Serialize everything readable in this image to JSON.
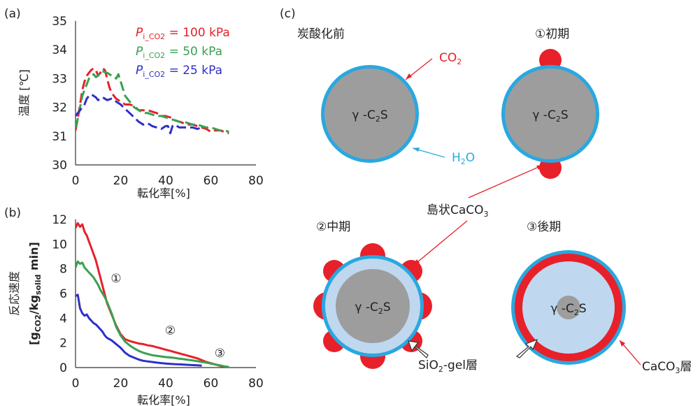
{
  "panels": {
    "a": "(a)",
    "b": "(b)",
    "c": "(c)"
  },
  "colors": {
    "red": "#e8202a",
    "green": "#3aa050",
    "blue": "#2f2fc8",
    "water": "#29a8e0",
    "gel": "#bfd8ef",
    "core": "#9d9d9d"
  },
  "chart_data": [
    {
      "type": "line",
      "panel": "(a)",
      "xlabel": "転化率[%]",
      "ylabel": "温度 [℃]",
      "xlim": [
        0,
        80
      ],
      "ylim": [
        30,
        35
      ],
      "xticks": [
        "0",
        "20",
        "40",
        "60",
        "80"
      ],
      "yticks": [
        "30",
        "31",
        "32",
        "33",
        "34",
        "35"
      ],
      "legend": [
        {
          "name_prefix": "P",
          "name_sub": "i_CO2",
          "value": " = 100 kPa",
          "color": "#e8202a"
        },
        {
          "name_prefix": "P",
          "name_sub": "i_CO2",
          "value": " = 50 kPa",
          "color": "#3aa050"
        },
        {
          "name_prefix": "P",
          "name_sub": "i_CO2",
          "value": " = 25 kPa",
          "color": "#2f2fc8"
        }
      ],
      "series": [
        {
          "color": "#e8202a",
          "points": [
            [
              0,
              31.2
            ],
            [
              1,
              31.6
            ],
            [
              2,
              32.1
            ],
            [
              3,
              32.6
            ],
            [
              4,
              32.9
            ],
            [
              5,
              33.1
            ],
            [
              6,
              33.2
            ],
            [
              7,
              33.3
            ],
            [
              8,
              33.35
            ],
            [
              9,
              33.3
            ],
            [
              10,
              33.1
            ],
            [
              11,
              33.2
            ],
            [
              12,
              33.35
            ],
            [
              13,
              33.3
            ],
            [
              14,
              33.0
            ],
            [
              15,
              32.7
            ],
            [
              16,
              32.5
            ],
            [
              18,
              32.3
            ],
            [
              20,
              32.2
            ],
            [
              22,
              32.1
            ],
            [
              24,
              32.1
            ],
            [
              26,
              32.05
            ],
            [
              28,
              31.9
            ],
            [
              30,
              31.9
            ],
            [
              32,
              31.9
            ],
            [
              34,
              31.85
            ],
            [
              36,
              31.8
            ],
            [
              38,
              31.7
            ],
            [
              40,
              31.7
            ],
            [
              42,
              31.65
            ],
            [
              44,
              31.55
            ],
            [
              46,
              31.5
            ],
            [
              48,
              31.45
            ],
            [
              50,
              31.4
            ],
            [
              52,
              31.4
            ],
            [
              54,
              31.35
            ],
            [
              56,
              31.3
            ],
            [
              58,
              31.25
            ],
            [
              60,
              31.15
            ],
            [
              62,
              31.2
            ],
            [
              64,
              31.2
            ],
            [
              66,
              31.15
            ],
            [
              68,
              31.1
            ]
          ]
        },
        {
          "color": "#3aa050",
          "points": [
            [
              0,
              31.3
            ],
            [
              1,
              31.6
            ],
            [
              2,
              32.0
            ],
            [
              3,
              32.4
            ],
            [
              4,
              32.6
            ],
            [
              5,
              32.8
            ],
            [
              6,
              33.0
            ],
            [
              7,
              33.1
            ],
            [
              8,
              33.15
            ],
            [
              9,
              33.05
            ],
            [
              10,
              33.1
            ],
            [
              11,
              33.2
            ],
            [
              12,
              33.25
            ],
            [
              14,
              33.2
            ],
            [
              16,
              33.1
            ],
            [
              18,
              33.0
            ],
            [
              19,
              33.15
            ],
            [
              20,
              32.9
            ],
            [
              22,
              32.4
            ],
            [
              24,
              32.2
            ],
            [
              26,
              32.0
            ],
            [
              28,
              31.9
            ],
            [
              30,
              31.8
            ],
            [
              32,
              31.8
            ],
            [
              34,
              31.75
            ],
            [
              36,
              31.7
            ],
            [
              38,
              31.7
            ],
            [
              40,
              31.65
            ],
            [
              42,
              31.6
            ],
            [
              44,
              31.55
            ],
            [
              46,
              31.5
            ],
            [
              48,
              31.5
            ],
            [
              50,
              31.45
            ],
            [
              52,
              31.4
            ],
            [
              54,
              31.4
            ],
            [
              56,
              31.35
            ],
            [
              58,
              31.3
            ],
            [
              60,
              31.3
            ],
            [
              62,
              31.25
            ],
            [
              64,
              31.2
            ],
            [
              66,
              31.2
            ],
            [
              68,
              31.15
            ]
          ]
        },
        {
          "color": "#2f2fc8",
          "points": [
            [
              0,
              31.7
            ],
            [
              1,
              31.8
            ],
            [
              2,
              31.9
            ],
            [
              3,
              32.0
            ],
            [
              4,
              32.1
            ],
            [
              5,
              32.3
            ],
            [
              6,
              32.4
            ],
            [
              7,
              32.45
            ],
            [
              8,
              32.4
            ],
            [
              9,
              32.35
            ],
            [
              10,
              32.25
            ],
            [
              11,
              32.3
            ],
            [
              12,
              32.35
            ],
            [
              13,
              32.3
            ],
            [
              14,
              32.25
            ],
            [
              16,
              32.3
            ],
            [
              18,
              32.2
            ],
            [
              20,
              32.1
            ],
            [
              22,
              31.95
            ],
            [
              24,
              31.8
            ],
            [
              26,
              31.65
            ],
            [
              28,
              31.5
            ],
            [
              30,
              31.4
            ],
            [
              32,
              31.45
            ],
            [
              34,
              31.35
            ],
            [
              36,
              31.3
            ],
            [
              38,
              31.25
            ],
            [
              40,
              31.35
            ],
            [
              41,
              31.35
            ],
            [
              42,
              31.1
            ],
            [
              43,
              31.35
            ],
            [
              44,
              31.4
            ],
            [
              46,
              31.3
            ],
            [
              48,
              31.3
            ],
            [
              50,
              31.3
            ],
            [
              52,
              31.3
            ],
            [
              54,
              31.25
            ],
            [
              56,
              31.3
            ]
          ]
        }
      ]
    },
    {
      "type": "line",
      "panel": "(b)",
      "xlabel": "転化率[%]",
      "ylabel": "反応速度",
      "ylabel_unit": {
        "open": "[g",
        "sub1": "CO2",
        "mid": "/kg",
        "sub2": "solid",
        "close": " min]"
      },
      "xlim": [
        0,
        80
      ],
      "ylim": [
        0,
        12
      ],
      "xticks": [
        "0",
        "20",
        "40",
        "60",
        "80"
      ],
      "yticks": [
        "0",
        "2",
        "4",
        "6",
        "8",
        "10",
        "12"
      ],
      "stage_labels": [
        {
          "text": "①",
          "x": 18,
          "y": 6.9
        },
        {
          "text": "②",
          "x": 42,
          "y": 2.7
        },
        {
          "text": "③",
          "x": 64,
          "y": 0.85
        }
      ],
      "series": [
        {
          "color": "#e8202a",
          "points": [
            [
              0,
              11.3
            ],
            [
              1,
              11.7
            ],
            [
              2,
              11.4
            ],
            [
              3,
              11.6
            ],
            [
              4,
              11.0
            ],
            [
              5,
              10.7
            ],
            [
              6,
              10.2
            ],
            [
              7,
              9.7
            ],
            [
              8,
              9.2
            ],
            [
              9,
              8.7
            ],
            [
              10,
              8.0
            ],
            [
              11,
              7.3
            ],
            [
              12,
              6.6
            ],
            [
              13,
              5.9
            ],
            [
              14,
              5.2
            ],
            [
              16,
              4.3
            ],
            [
              18,
              3.4
            ],
            [
              20,
              2.7
            ],
            [
              22,
              2.3
            ],
            [
              24,
              2.15
            ],
            [
              26,
              2.05
            ],
            [
              28,
              1.95
            ],
            [
              30,
              1.9
            ],
            [
              32,
              1.8
            ],
            [
              34,
              1.75
            ],
            [
              36,
              1.65
            ],
            [
              38,
              1.55
            ],
            [
              40,
              1.45
            ],
            [
              42,
              1.35
            ],
            [
              44,
              1.25
            ],
            [
              46,
              1.15
            ],
            [
              48,
              1.05
            ],
            [
              50,
              0.95
            ],
            [
              52,
              0.85
            ],
            [
              54,
              0.75
            ],
            [
              56,
              0.6
            ],
            [
              58,
              0.45
            ],
            [
              60,
              0.35
            ],
            [
              62,
              0.25
            ],
            [
              64,
              0.15
            ],
            [
              66,
              0.08
            ],
            [
              68,
              0.05
            ]
          ]
        },
        {
          "color": "#3aa050",
          "points": [
            [
              0,
              8.1
            ],
            [
              1,
              8.6
            ],
            [
              2,
              8.4
            ],
            [
              3,
              8.5
            ],
            [
              4,
              8.1
            ],
            [
              5,
              7.9
            ],
            [
              6,
              7.7
            ],
            [
              7,
              7.5
            ],
            [
              8,
              7.3
            ],
            [
              9,
              7.0
            ],
            [
              10,
              6.7
            ],
            [
              11,
              6.3
            ],
            [
              12,
              6.0
            ],
            [
              13,
              5.7
            ],
            [
              14,
              5.3
            ],
            [
              16,
              4.4
            ],
            [
              18,
              3.3
            ],
            [
              20,
              2.6
            ],
            [
              22,
              2.1
            ],
            [
              24,
              1.8
            ],
            [
              26,
              1.55
            ],
            [
              28,
              1.35
            ],
            [
              30,
              1.2
            ],
            [
              32,
              1.1
            ],
            [
              34,
              1.0
            ],
            [
              36,
              0.95
            ],
            [
              38,
              0.9
            ],
            [
              40,
              0.85
            ],
            [
              42,
              0.82
            ],
            [
              44,
              0.78
            ],
            [
              46,
              0.72
            ],
            [
              48,
              0.68
            ],
            [
              50,
              0.62
            ],
            [
              52,
              0.58
            ],
            [
              54,
              0.52
            ],
            [
              56,
              0.45
            ],
            [
              58,
              0.4
            ],
            [
              60,
              0.32
            ],
            [
              62,
              0.25
            ],
            [
              64,
              0.18
            ],
            [
              66,
              0.1
            ],
            [
              68,
              0.05
            ]
          ]
        },
        {
          "color": "#2f2fc8",
          "points": [
            [
              0,
              5.8
            ],
            [
              1,
              5.9
            ],
            [
              2,
              4.8
            ],
            [
              3,
              4.4
            ],
            [
              4,
              4.2
            ],
            [
              5,
              4.3
            ],
            [
              6,
              4.0
            ],
            [
              7,
              3.8
            ],
            [
              8,
              3.6
            ],
            [
              9,
              3.5
            ],
            [
              10,
              3.3
            ],
            [
              11,
              3.1
            ],
            [
              12,
              2.9
            ],
            [
              13,
              2.6
            ],
            [
              14,
              2.4
            ],
            [
              16,
              2.2
            ],
            [
              18,
              1.9
            ],
            [
              20,
              1.6
            ],
            [
              22,
              1.2
            ],
            [
              24,
              0.95
            ],
            [
              26,
              0.8
            ],
            [
              28,
              0.65
            ],
            [
              30,
              0.55
            ],
            [
              32,
              0.5
            ],
            [
              34,
              0.45
            ],
            [
              36,
              0.4
            ],
            [
              38,
              0.36
            ],
            [
              40,
              0.33
            ],
            [
              42,
              0.3
            ],
            [
              44,
              0.28
            ],
            [
              46,
              0.26
            ],
            [
              48,
              0.24
            ],
            [
              50,
              0.22
            ],
            [
              52,
              0.2
            ],
            [
              54,
              0.18
            ],
            [
              56,
              0.16
            ]
          ]
        }
      ]
    }
  ],
  "diagram": {
    "titles": {
      "before": "炭酸化前",
      "early": "①初期",
      "middle": "②中期",
      "late": "③後期"
    },
    "core_label": {
      "prefix": "γ -C",
      "sub": "2",
      "suffix": "S"
    },
    "labels": {
      "co2": {
        "text": "CO",
        "sub": "2"
      },
      "h2o": {
        "text": "H",
        "sub": "2",
        "suffix": "O"
      },
      "island": {
        "text": "島状CaCO",
        "sub": "3"
      },
      "sio2": {
        "prefix": "SiO",
        "sub": "2",
        "suffix": "-gel層"
      },
      "caco3": {
        "prefix": "CaCO",
        "sub": "3",
        "suffix": "層"
      }
    }
  }
}
